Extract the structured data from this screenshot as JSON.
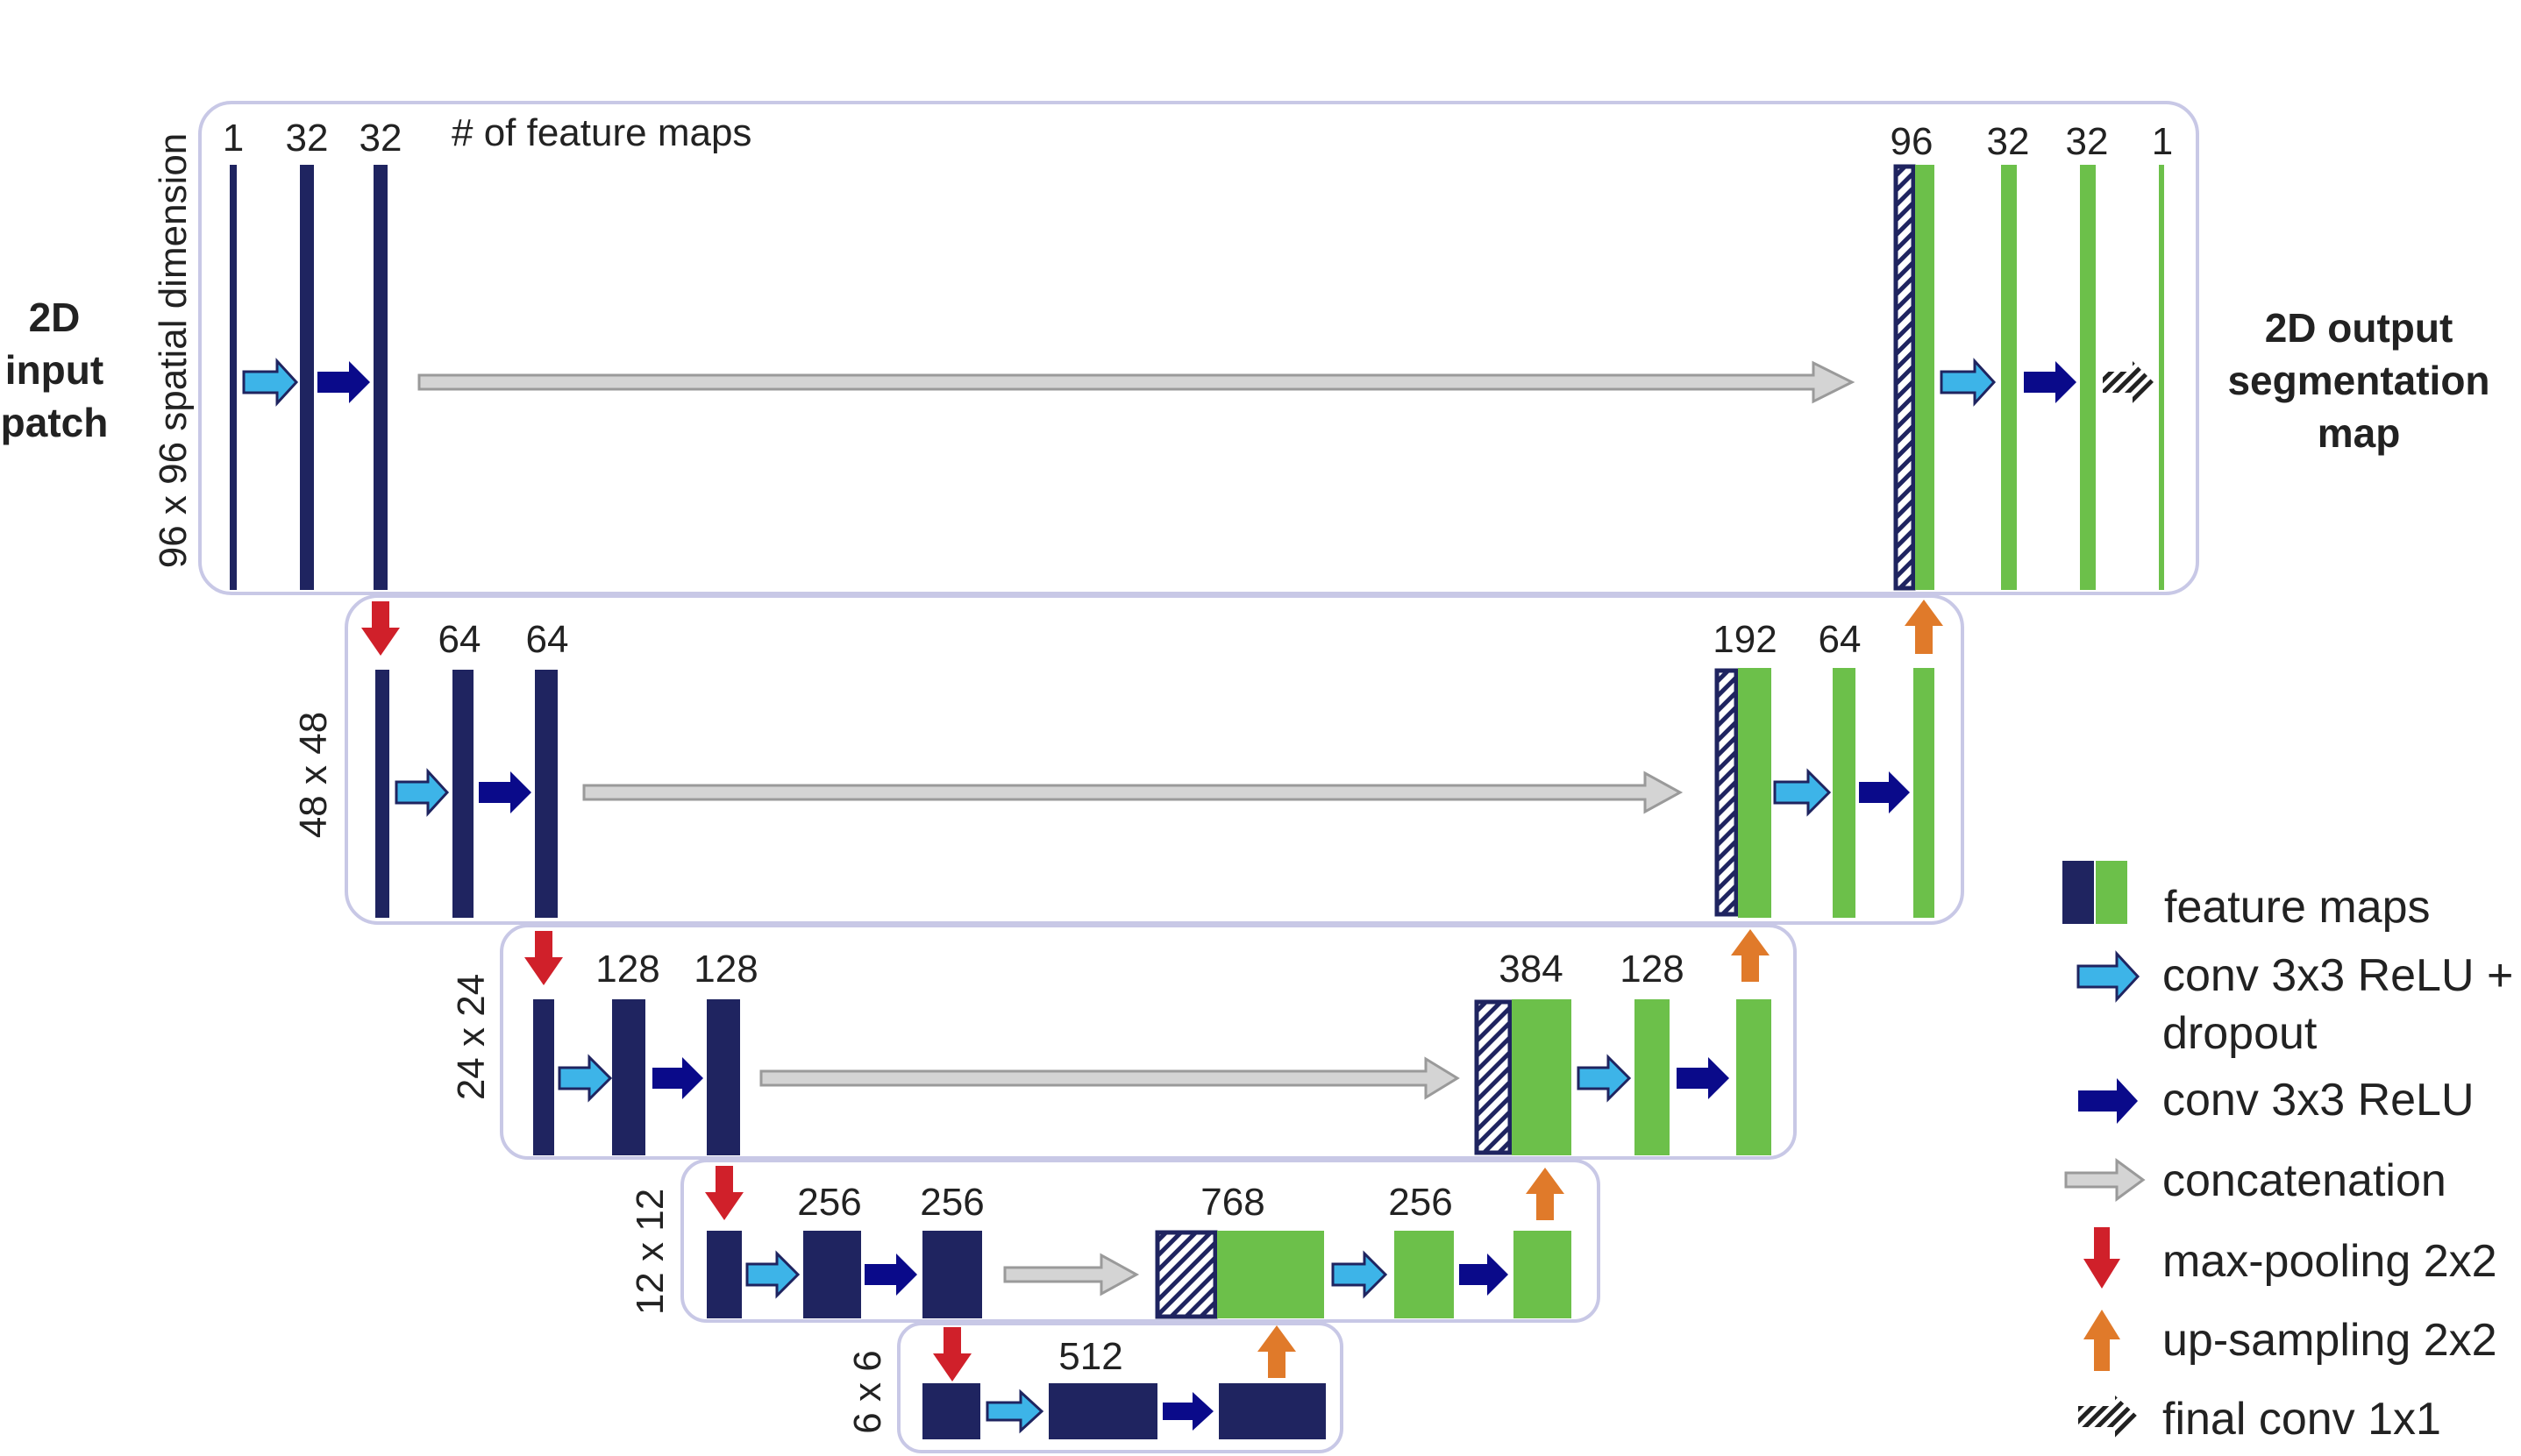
{
  "colors": {
    "encoder": "#1f2460",
    "decoder": "#6cc04a",
    "frame_stroke": "#c8c8e6",
    "conv_dropout": "#3db4e8",
    "conv": "#0a0a8a",
    "concat": "#d4d4d4",
    "maxpool": "#d0202a",
    "upsample": "#e07a2a",
    "final_conv": "#222222"
  },
  "labels": {
    "input": [
      "2D",
      "input",
      "patch"
    ],
    "output": [
      "2D output",
      "segmentation",
      "map"
    ],
    "feature_maps_note": "# of feature maps"
  },
  "levels": [
    {
      "dimension": "96 x 96 spatial dimension",
      "encoder_channels": [
        "1",
        "32",
        "32"
      ],
      "decoder_channels": [
        "96",
        "32",
        "32",
        "1"
      ]
    },
    {
      "dimension": "48 x 48",
      "encoder_channels": [
        "64",
        "64"
      ],
      "decoder_channels": [
        "192",
        "64"
      ]
    },
    {
      "dimension": "24 x 24",
      "encoder_channels": [
        "128",
        "128"
      ],
      "decoder_channels": [
        "384",
        "128"
      ]
    },
    {
      "dimension": "12 x 12",
      "encoder_channels": [
        "256",
        "256"
      ],
      "decoder_channels": [
        "768",
        "256"
      ]
    },
    {
      "dimension": "6 x 6",
      "encoder_channels": [
        "512"
      ],
      "decoder_channels": []
    }
  ],
  "legend": {
    "feature_maps": "feature maps",
    "conv_dropout": [
      "conv 3x3 ReLU +",
      "dropout"
    ],
    "conv": "conv 3x3 ReLU",
    "concat": "concatenation",
    "maxpool": "max-pooling 2x2",
    "upsample": "up-sampling 2x2",
    "final_conv": "final conv 1x1"
  }
}
